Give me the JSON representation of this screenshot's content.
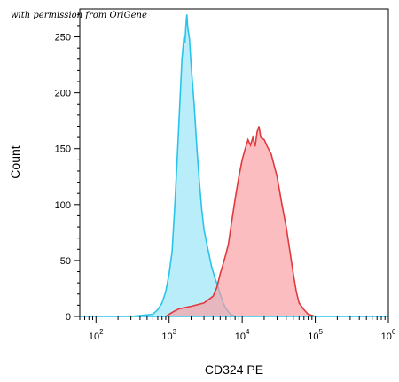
{
  "watermark": "with permission from OriGene",
  "chart_data": {
    "type": "area",
    "xlabel": "CD324 PE",
    "ylabel": "Count",
    "x_scale": "log",
    "xlim": [
      60,
      1000000
    ],
    "ylim": [
      0,
      275
    ],
    "x_ticks": [
      {
        "value": 100,
        "base": "10",
        "exp": "2"
      },
      {
        "value": 1000,
        "base": "10",
        "exp": "3"
      },
      {
        "value": 10000,
        "base": "10",
        "exp": "4"
      },
      {
        "value": 100000,
        "base": "10",
        "exp": "5"
      },
      {
        "value": 1000000,
        "base": "10",
        "exp": "6"
      }
    ],
    "y_ticks": [
      0,
      50,
      100,
      150,
      200,
      250
    ],
    "grid": false,
    "legend": "none",
    "series": [
      {
        "color": "#29c4ea",
        "fill": "#9ae4f7",
        "points": [
          [
            300,
            0
          ],
          [
            600,
            2
          ],
          [
            700,
            6
          ],
          [
            800,
            12
          ],
          [
            900,
            22
          ],
          [
            1000,
            38
          ],
          [
            1100,
            58
          ],
          [
            1200,
            100
          ],
          [
            1300,
            145
          ],
          [
            1400,
            190
          ],
          [
            1500,
            230
          ],
          [
            1600,
            250
          ],
          [
            1650,
            245
          ],
          [
            1700,
            260
          ],
          [
            1750,
            270
          ],
          [
            1800,
            258
          ],
          [
            1900,
            248
          ],
          [
            2000,
            225
          ],
          [
            2200,
            190
          ],
          [
            2400,
            150
          ],
          [
            2600,
            120
          ],
          [
            2800,
            95
          ],
          [
            3000,
            78
          ],
          [
            3400,
            60
          ],
          [
            3800,
            45
          ],
          [
            4200,
            35
          ],
          [
            4600,
            28
          ],
          [
            5000,
            20
          ],
          [
            5500,
            12
          ],
          [
            6000,
            7
          ],
          [
            6500,
            4
          ],
          [
            7000,
            2
          ],
          [
            8000,
            0
          ]
        ]
      },
      {
        "color": "#e0393e",
        "fill": "#fb9ea2",
        "points": [
          [
            900,
            0
          ],
          [
            1000,
            2
          ],
          [
            1200,
            5
          ],
          [
            1400,
            7
          ],
          [
            2000,
            9
          ],
          [
            3000,
            12
          ],
          [
            4000,
            18
          ],
          [
            4500,
            26
          ],
          [
            5000,
            38
          ],
          [
            5500,
            47
          ],
          [
            6000,
            56
          ],
          [
            6500,
            65
          ],
          [
            7000,
            80
          ],
          [
            8000,
            105
          ],
          [
            9000,
            125
          ],
          [
            10000,
            140
          ],
          [
            11000,
            150
          ],
          [
            12000,
            158
          ],
          [
            13000,
            153
          ],
          [
            14000,
            160
          ],
          [
            15000,
            152
          ],
          [
            16000,
            165
          ],
          [
            17000,
            170
          ],
          [
            18000,
            160
          ],
          [
            20000,
            158
          ],
          [
            22000,
            152
          ],
          [
            25000,
            145
          ],
          [
            30000,
            125
          ],
          [
            35000,
            100
          ],
          [
            40000,
            80
          ],
          [
            45000,
            58
          ],
          [
            50000,
            38
          ],
          [
            55000,
            22
          ],
          [
            60000,
            12
          ],
          [
            70000,
            6
          ],
          [
            80000,
            2
          ],
          [
            100000,
            0
          ]
        ]
      }
    ]
  }
}
